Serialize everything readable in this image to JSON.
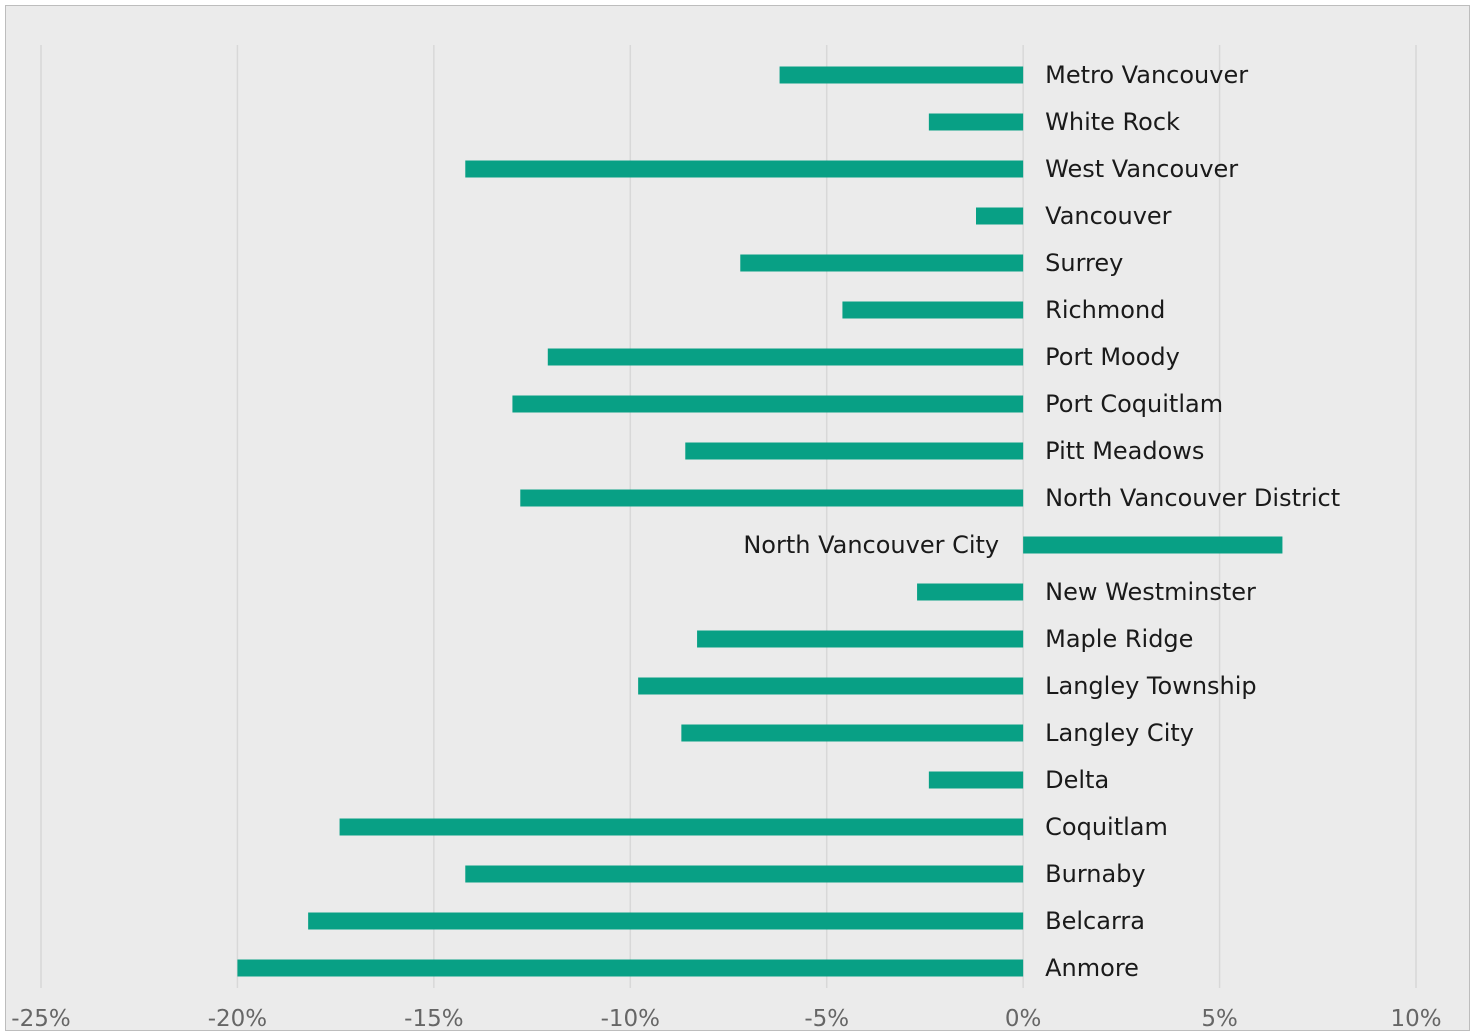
{
  "chart_data": {
    "type": "bar",
    "orientation": "horizontal",
    "categories": [
      "Metro Vancouver",
      "White Rock",
      "West Vancouver",
      "Vancouver",
      "Surrey",
      "Richmond",
      "Port Moody",
      "Port Coquitlam",
      "Pitt Meadows",
      "North Vancouver District",
      "North Vancouver City",
      "New Westminster",
      "Maple Ridge",
      "Langley Township",
      "Langley City",
      "Delta",
      "Coquitlam",
      "Burnaby",
      "Belcarra",
      "Anmore"
    ],
    "values": [
      -6.2,
      -2.4,
      -14.2,
      -1.2,
      -7.2,
      -4.6,
      -12.1,
      -13.0,
      -8.6,
      -12.8,
      6.6,
      -2.7,
      -8.3,
      -9.8,
      -8.7,
      -2.4,
      -17.4,
      -14.2,
      -18.2,
      -20.0
    ],
    "xlim": [
      -25,
      10
    ],
    "x_ticks": [
      -25,
      -20,
      -15,
      -10,
      -5,
      0,
      5,
      10
    ],
    "x_tick_labels": [
      "-25%",
      "-20%",
      "-15%",
      "-10%",
      "-5%",
      "0%",
      "5%",
      "10%"
    ],
    "title": "",
    "xlabel": "",
    "ylabel": "",
    "grid": "vertical",
    "legend": "none",
    "colors": {
      "bar": "#08a085",
      "background": "#ebebeb",
      "grid": "#d8d8d8",
      "label": "#1a1a1a",
      "tick": "#666666"
    }
  }
}
